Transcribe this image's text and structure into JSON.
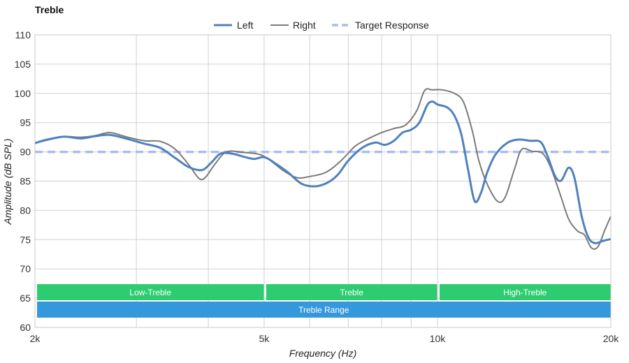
{
  "chart_data": {
    "type": "line",
    "title": "Treble",
    "xlabel": "Frequency (Hz)",
    "ylabel": "Amplitude (dB SPL)",
    "x_scale": "log",
    "xlim": [
      2000,
      20000
    ],
    "ylim": [
      60,
      110
    ],
    "x_ticks": [
      {
        "value": 2000,
        "label": "2k"
      },
      {
        "value": 5000,
        "label": "5k"
      },
      {
        "value": 10000,
        "label": "10k"
      },
      {
        "value": 20000,
        "label": "20k"
      }
    ],
    "x_gridlines": [
      2000,
      3000,
      4000,
      5000,
      6000,
      7000,
      8000,
      9000,
      10000,
      20000
    ],
    "y_ticks": [
      60,
      65,
      70,
      75,
      80,
      85,
      90,
      95,
      100,
      105,
      110
    ],
    "grid": true,
    "legend_position": "top-center",
    "series": [
      {
        "name": "Left",
        "color": "#4f81bd",
        "style": "solid-thick",
        "points": [
          [
            2000,
            91.5
          ],
          [
            2100,
            92.1
          ],
          [
            2250,
            92.6
          ],
          [
            2400,
            92.3
          ],
          [
            2550,
            92.7
          ],
          [
            2700,
            92.9
          ],
          [
            2900,
            92.2
          ],
          [
            3100,
            91.4
          ],
          [
            3300,
            90.7
          ],
          [
            3500,
            89.0
          ],
          [
            3700,
            87.4
          ],
          [
            3900,
            86.9
          ],
          [
            4050,
            88.2
          ],
          [
            4200,
            89.7
          ],
          [
            4400,
            89.7
          ],
          [
            4600,
            89.2
          ],
          [
            4800,
            88.8
          ],
          [
            5000,
            89.1
          ],
          [
            5200,
            88.2
          ],
          [
            5500,
            86.5
          ],
          [
            5800,
            84.6
          ],
          [
            6100,
            84.1
          ],
          [
            6400,
            84.6
          ],
          [
            6700,
            86.0
          ],
          [
            7000,
            88.5
          ],
          [
            7400,
            90.7
          ],
          [
            7800,
            91.6
          ],
          [
            8100,
            91.2
          ],
          [
            8400,
            91.9
          ],
          [
            8700,
            93.3
          ],
          [
            9000,
            93.8
          ],
          [
            9300,
            95.0
          ],
          [
            9600,
            98.0
          ],
          [
            9800,
            98.6
          ],
          [
            10000,
            98.1
          ],
          [
            10400,
            97.6
          ],
          [
            10700,
            96.2
          ],
          [
            11000,
            93.0
          ],
          [
            11300,
            87.0
          ],
          [
            11600,
            81.6
          ],
          [
            11900,
            83.0
          ],
          [
            12200,
            86.5
          ],
          [
            12600,
            89.5
          ],
          [
            13200,
            91.5
          ],
          [
            13800,
            92.1
          ],
          [
            14500,
            91.9
          ],
          [
            15100,
            91.7
          ],
          [
            15500,
            89.5
          ],
          [
            16000,
            85.9
          ],
          [
            16400,
            85.1
          ],
          [
            16900,
            87.3
          ],
          [
            17300,
            85.5
          ],
          [
            17800,
            79.0
          ],
          [
            18300,
            75.3
          ],
          [
            18800,
            74.4
          ],
          [
            19400,
            74.8
          ],
          [
            20000,
            75.1
          ]
        ]
      },
      {
        "name": "Right",
        "color": "#7a7a7a",
        "style": "solid-thin",
        "points": [
          [
            2000,
            91.5
          ],
          [
            2100,
            92.0
          ],
          [
            2250,
            92.6
          ],
          [
            2400,
            92.5
          ],
          [
            2550,
            92.8
          ],
          [
            2700,
            93.3
          ],
          [
            2900,
            92.5
          ],
          [
            3100,
            91.9
          ],
          [
            3300,
            91.8
          ],
          [
            3500,
            90.5
          ],
          [
            3700,
            87.8
          ],
          [
            3850,
            85.5
          ],
          [
            3950,
            85.6
          ],
          [
            4100,
            87.8
          ],
          [
            4300,
            90.0
          ],
          [
            4600,
            89.9
          ],
          [
            4900,
            89.6
          ],
          [
            5100,
            88.7
          ],
          [
            5400,
            86.8
          ],
          [
            5700,
            85.6
          ],
          [
            6000,
            85.8
          ],
          [
            6400,
            86.5
          ],
          [
            6800,
            88.5
          ],
          [
            7200,
            91.0
          ],
          [
            7600,
            92.3
          ],
          [
            8000,
            93.3
          ],
          [
            8400,
            94.0
          ],
          [
            8800,
            94.6
          ],
          [
            9200,
            97.0
          ],
          [
            9500,
            100.5
          ],
          [
            9800,
            100.6
          ],
          [
            10200,
            100.6
          ],
          [
            10700,
            100.0
          ],
          [
            11100,
            98.5
          ],
          [
            11500,
            93.5
          ],
          [
            11800,
            88.5
          ],
          [
            12200,
            84.5
          ],
          [
            12700,
            81.6
          ],
          [
            13100,
            82.2
          ],
          [
            13600,
            87.0
          ],
          [
            14000,
            90.4
          ],
          [
            14600,
            90.1
          ],
          [
            15200,
            89.8
          ],
          [
            15700,
            87.5
          ],
          [
            16300,
            83.0
          ],
          [
            16900,
            78.5
          ],
          [
            17500,
            76.5
          ],
          [
            18000,
            75.8
          ],
          [
            18500,
            73.6
          ],
          [
            19000,
            73.8
          ],
          [
            19500,
            76.5
          ],
          [
            20000,
            79.0
          ]
        ]
      },
      {
        "name": "Target Response",
        "color": "#aabdf0",
        "style": "dashed",
        "points": [
          [
            2000,
            90.0
          ],
          [
            20000,
            90.0
          ]
        ]
      }
    ],
    "bands": [
      {
        "label": "Low-Treble",
        "x_start": 2000,
        "x_end": 5000,
        "row": 0,
        "color": "#2ecc71"
      },
      {
        "label": "Treble",
        "x_start": 5000,
        "x_end": 10000,
        "row": 0,
        "color": "#2ecc71"
      },
      {
        "label": "High-Treble",
        "x_start": 10000,
        "x_end": 20000,
        "row": 0,
        "color": "#2ecc71"
      },
      {
        "label": "Treble Range",
        "x_start": 2000,
        "x_end": 20000,
        "row": 1,
        "color": "#3498db"
      }
    ]
  }
}
